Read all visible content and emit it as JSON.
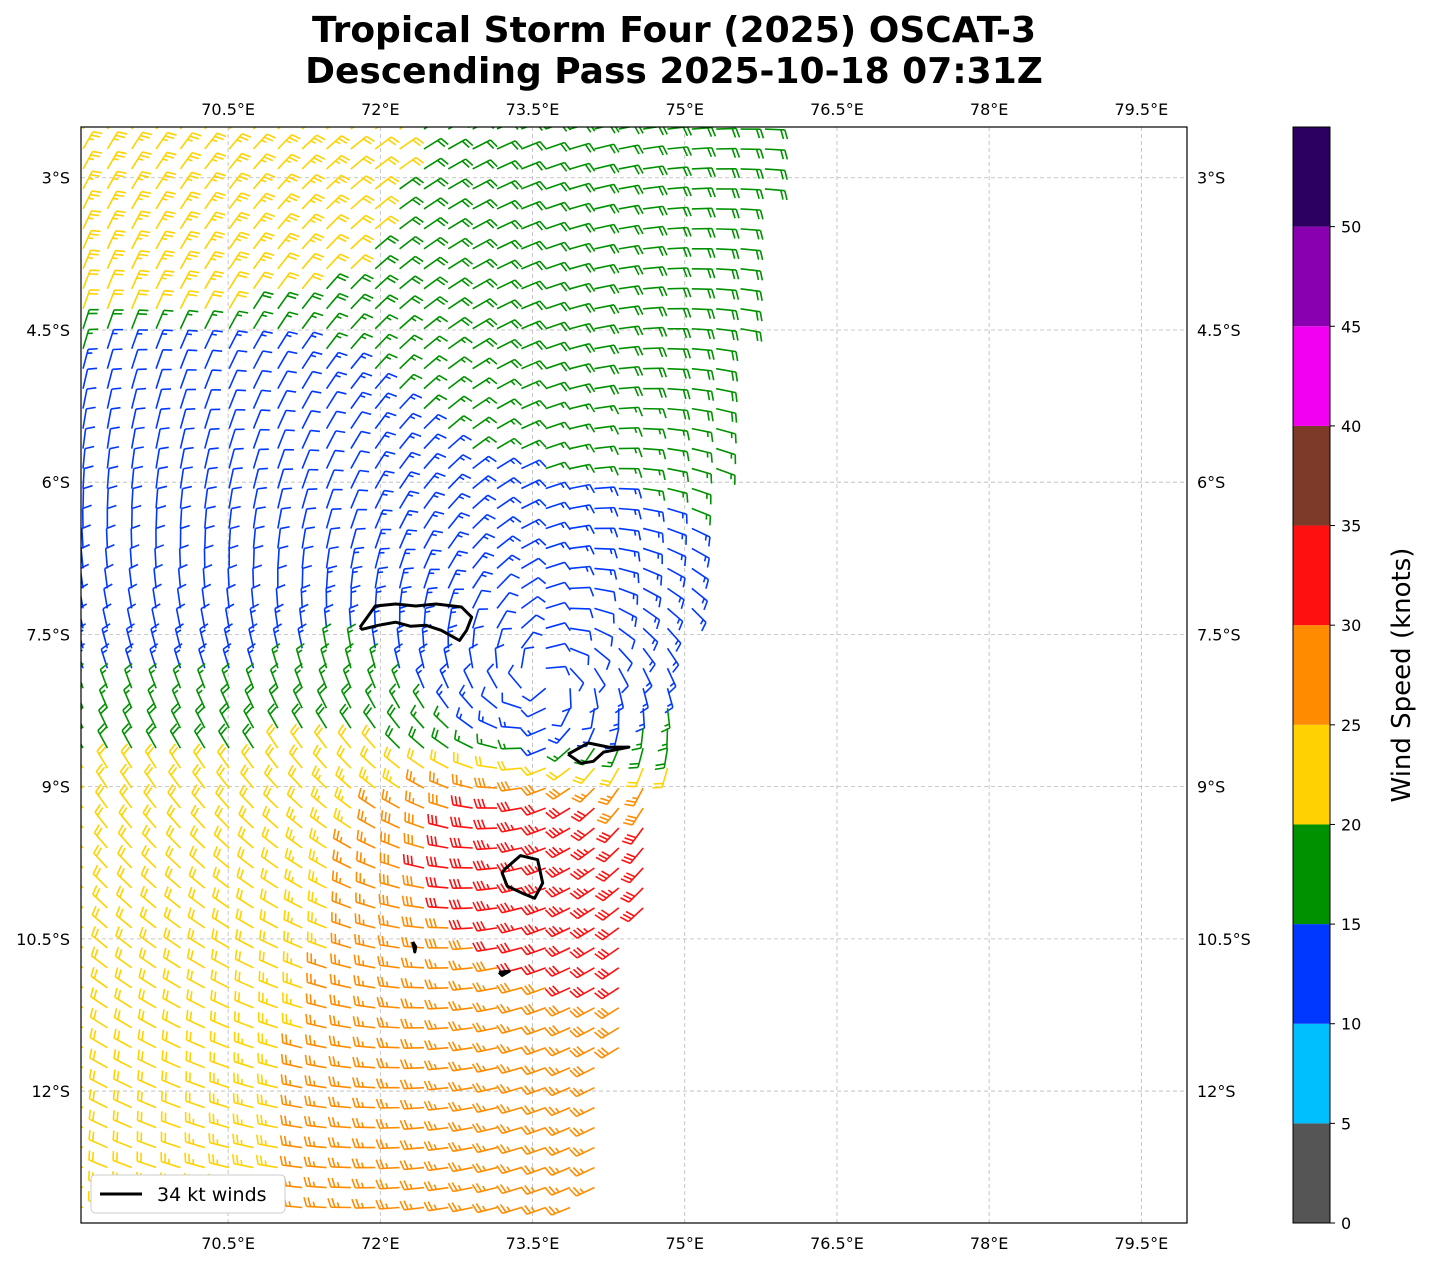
{
  "chart_data": {
    "type": "wind_barb_map",
    "title_line1": "Tropical Storm Four (2025) OSCAT-3",
    "title_line2": "Descending Pass 2025-10-18 07:31Z",
    "lon_range": [
      69.05,
      79.95
    ],
    "lat_range": [
      -2.5,
      -13.3
    ],
    "lon_ticks": [
      70.5,
      72,
      73.5,
      75,
      76.5,
      78,
      79.5
    ],
    "lon_tick_labels": [
      "70.5°E",
      "72°E",
      "73.5°E",
      "75°E",
      "76.5°E",
      "78°E",
      "79.5°E"
    ],
    "lat_ticks": [
      -3,
      -4.5,
      -6,
      -7.5,
      -9,
      -10.5,
      -12
    ],
    "lat_tick_labels": [
      "3°S",
      "4.5°S",
      "6°S",
      "7.5°S",
      "9°S",
      "10.5°S",
      "12°S"
    ],
    "grid": true,
    "swath_edges": {
      "east_top_lon": 75.9,
      "east_top_lat": -2.5,
      "east_bottom_lon": 74.1,
      "east_bottom_lat": -13.2,
      "west_lon": 69.05
    },
    "storm_center": {
      "lon": 73.6,
      "lat": -7.95
    },
    "wind_field_regions": [
      {
        "region": "center calm",
        "lon": 73.6,
        "lat": -7.9,
        "speed_kt": 12
      },
      {
        "region": "west light winds",
        "lon": 70.1,
        "lat": -5.8,
        "speed_kt": 10
      },
      {
        "region": "northwest",
        "lon": 70.0,
        "lat": -3.2,
        "speed_kt": 24
      },
      {
        "region": "northeast",
        "lon": 74.2,
        "lat": -3.6,
        "speed_kt": 18
      },
      {
        "region": "south-southeast maximum",
        "lon": 73.6,
        "lat": -9.8,
        "speed_kt": 33
      },
      {
        "region": "south",
        "lon": 72.5,
        "lat": -11.5,
        "speed_kt": 26
      },
      {
        "region": "southwest",
        "lon": 69.8,
        "lat": -10.5,
        "speed_kt": 21
      }
    ],
    "contour_34kt": [
      {
        "lon": [
          71.8,
          71.95,
          72.15,
          72.35,
          72.55,
          72.8,
          72.9,
          72.85,
          72.78,
          72.6,
          72.45,
          72.3,
          72.15,
          71.98,
          71.82,
          71.8
        ],
        "lat": [
          -7.43,
          -7.22,
          -7.2,
          -7.22,
          -7.2,
          -7.23,
          -7.33,
          -7.46,
          -7.56,
          -7.46,
          -7.41,
          -7.42,
          -7.38,
          -7.41,
          -7.45,
          -7.43
        ]
      },
      {
        "lon": [
          73.85,
          74.05,
          74.25,
          74.45,
          74.2,
          74.1,
          73.98,
          73.85
        ],
        "lat": [
          -8.68,
          -8.57,
          -8.61,
          -8.61,
          -8.66,
          -8.75,
          -8.77,
          -8.68
        ]
      },
      {
        "lon": [
          73.22,
          73.38,
          73.55,
          73.6,
          73.52,
          73.4,
          73.25,
          73.2,
          73.22
        ],
        "lat": [
          -9.82,
          -9.68,
          -9.72,
          -9.95,
          -10.1,
          -10.05,
          -9.98,
          -9.85,
          -9.82
        ]
      },
      {
        "lon": [
          72.32,
          72.35,
          72.34,
          72.32
        ],
        "lat": [
          -10.53,
          -10.58,
          -10.63,
          -10.53
        ]
      },
      {
        "lon": [
          73.17,
          73.27,
          73.2,
          73.17
        ],
        "lat": [
          -10.83,
          -10.82,
          -10.86,
          -10.83
        ]
      }
    ],
    "colorbar": {
      "label": "Wind Speed (knots)",
      "bounds": [
        0,
        5,
        10,
        15,
        20,
        25,
        30,
        35,
        40,
        45,
        50,
        55
      ],
      "tick_values": [
        0,
        5,
        10,
        15,
        20,
        25,
        30,
        35,
        40,
        45,
        50
      ],
      "tick_labels": [
        "0",
        "5",
        "10",
        "15",
        "20",
        "25",
        "30",
        "35",
        "40",
        "45",
        "50"
      ],
      "colors": [
        "#555555",
        "#00bfff",
        "#0038ff",
        "#009100",
        "#ffd200",
        "#ff8c00",
        "#ff1010",
        "#7d3a28",
        "#f200f2",
        "#8800b0",
        "#2c0060"
      ]
    },
    "legend": {
      "label": "34 kt winds",
      "placement": "bottom-left",
      "color": "#000000"
    }
  }
}
